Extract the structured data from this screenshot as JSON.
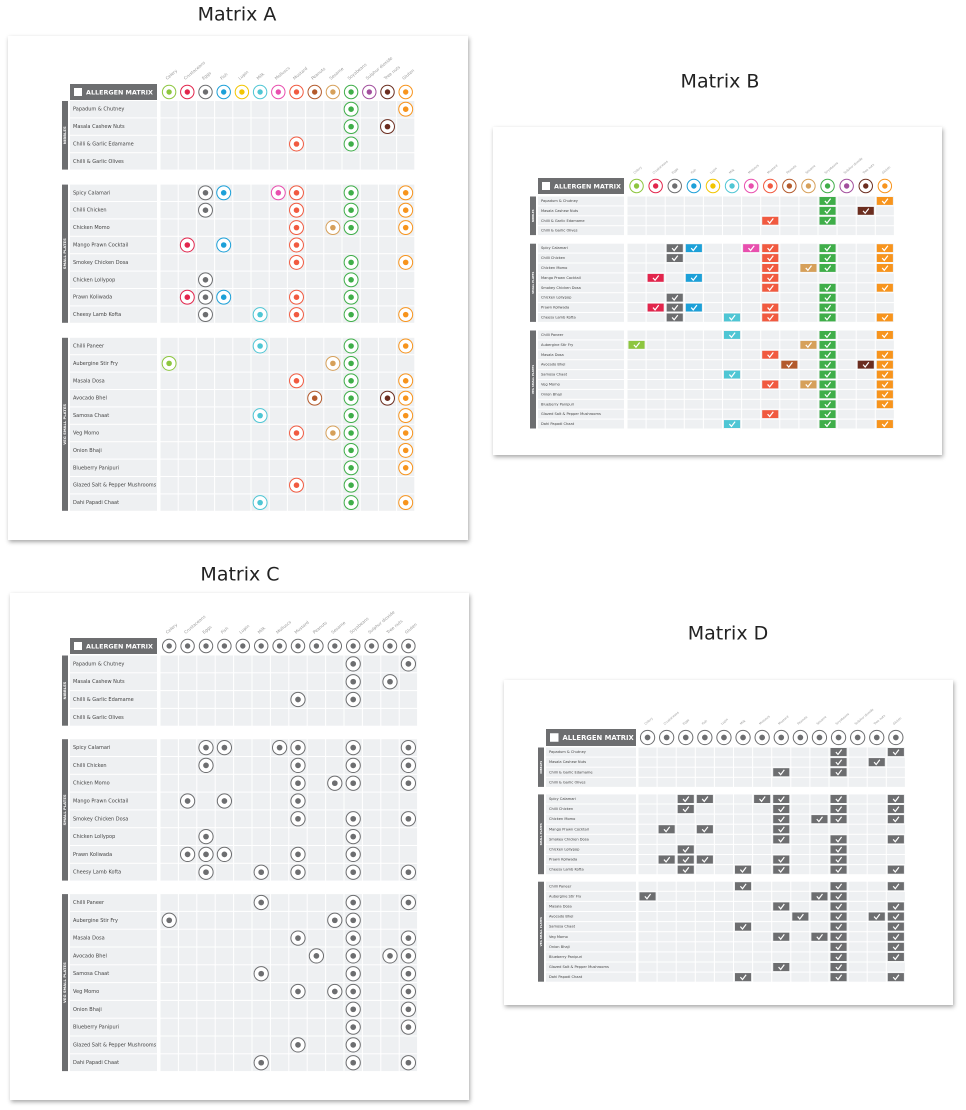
{
  "header_label": "ALLERGEN MATRIX",
  "matrices": [
    {
      "title": "Matrix A",
      "marker": "icon",
      "colored": true
    },
    {
      "title": "Matrix B",
      "marker": "check",
      "colored": true
    },
    {
      "title": "Matrix C",
      "marker": "icon",
      "colored": false
    },
    {
      "title": "Matrix D",
      "marker": "check",
      "colored": false
    }
  ],
  "menu": {
    "allergens": [
      "Celery",
      "Crustaceans",
      "Eggs",
      "Fish",
      "Lupin",
      "Milk",
      "Molluscs",
      "Mustard",
      "Peanuts",
      "Sesame",
      "Soyabeans",
      "Sulphur dioxide",
      "Tree nuts",
      "Gluten"
    ],
    "colors": [
      "#8dc63f",
      "#e2254c",
      "#6d6e70",
      "#1ca0d8",
      "#f2c500",
      "#4fc6d4",
      "#e84fae",
      "#f15a40",
      "#b35a2c",
      "#d6a05a",
      "#3fae49",
      "#a24f9d",
      "#6b2d1f",
      "#f7941d"
    ],
    "gray": "#6d6e70",
    "sections": [
      {
        "name": "NIBBLES",
        "dishes": [
          {
            "name": "Papadum & Chutney",
            "contains": [
              0,
              0,
              0,
              0,
              0,
              0,
              0,
              0,
              0,
              0,
              1,
              0,
              0,
              1
            ]
          },
          {
            "name": "Masala Cashew Nuts",
            "contains": [
              0,
              0,
              0,
              0,
              0,
              0,
              0,
              0,
              0,
              0,
              1,
              0,
              1,
              0
            ]
          },
          {
            "name": "Chilli & Garlic Edamame",
            "contains": [
              0,
              0,
              0,
              0,
              0,
              0,
              0,
              1,
              0,
              0,
              1,
              0,
              0,
              0
            ]
          },
          {
            "name": "Chilli & Garlic Olives",
            "contains": [
              0,
              0,
              0,
              0,
              0,
              0,
              0,
              0,
              0,
              0,
              0,
              0,
              0,
              0
            ]
          }
        ]
      },
      {
        "name": "SMALL PLATES",
        "dishes": [
          {
            "name": "Spicy Calamari",
            "contains": [
              0,
              0,
              1,
              1,
              0,
              0,
              1,
              1,
              0,
              0,
              1,
              0,
              0,
              1
            ]
          },
          {
            "name": "Chilli Chicken",
            "contains": [
              0,
              0,
              1,
              0,
              0,
              0,
              0,
              1,
              0,
              0,
              1,
              0,
              0,
              1
            ]
          },
          {
            "name": "Chicken Momo",
            "contains": [
              0,
              0,
              0,
              0,
              0,
              0,
              0,
              1,
              0,
              1,
              1,
              0,
              0,
              1
            ]
          },
          {
            "name": "Mango Prawn Cocktail",
            "contains": [
              0,
              1,
              0,
              1,
              0,
              0,
              0,
              1,
              0,
              0,
              0,
              0,
              0,
              0
            ]
          },
          {
            "name": "Smokey Chicken Dosa",
            "contains": [
              0,
              0,
              0,
              0,
              0,
              0,
              0,
              1,
              0,
              0,
              1,
              0,
              0,
              1
            ]
          },
          {
            "name": "Chicken Lollypop",
            "contains": [
              0,
              0,
              1,
              0,
              0,
              0,
              0,
              0,
              0,
              0,
              1,
              0,
              0,
              0
            ]
          },
          {
            "name": "Prawn Koliwada",
            "contains": [
              0,
              1,
              1,
              1,
              0,
              0,
              0,
              1,
              0,
              0,
              1,
              0,
              0,
              0
            ]
          },
          {
            "name": "Cheesy Lamb Kofta",
            "contains": [
              0,
              0,
              1,
              0,
              0,
              1,
              0,
              1,
              0,
              0,
              1,
              0,
              0,
              1
            ]
          }
        ]
      },
      {
        "name": "VEG SMALL PLATES",
        "dishes": [
          {
            "name": "Chilli Paneer",
            "contains": [
              0,
              0,
              0,
              0,
              0,
              1,
              0,
              0,
              0,
              0,
              1,
              0,
              0,
              1
            ]
          },
          {
            "name": "Aubergine Stir Fry",
            "contains": [
              1,
              0,
              0,
              0,
              0,
              0,
              0,
              0,
              0,
              1,
              1,
              0,
              0,
              0
            ]
          },
          {
            "name": "Masala Dosa",
            "contains": [
              0,
              0,
              0,
              0,
              0,
              0,
              0,
              1,
              0,
              0,
              1,
              0,
              0,
              1
            ]
          },
          {
            "name": "Avocado Bhel",
            "contains": [
              0,
              0,
              0,
              0,
              0,
              0,
              0,
              0,
              1,
              0,
              1,
              0,
              1,
              1
            ]
          },
          {
            "name": "Samosa Chaat",
            "contains": [
              0,
              0,
              0,
              0,
              0,
              1,
              0,
              0,
              0,
              0,
              1,
              0,
              0,
              1
            ]
          },
          {
            "name": "Veg Momo",
            "contains": [
              0,
              0,
              0,
              0,
              0,
              0,
              0,
              1,
              0,
              1,
              1,
              0,
              0,
              1
            ]
          },
          {
            "name": "Onion Bhaji",
            "contains": [
              0,
              0,
              0,
              0,
              0,
              0,
              0,
              0,
              0,
              0,
              1,
              0,
              0,
              1
            ]
          },
          {
            "name": "Blueberry Panipuri",
            "contains": [
              0,
              0,
              0,
              0,
              0,
              0,
              0,
              0,
              0,
              0,
              1,
              0,
              0,
              1
            ]
          },
          {
            "name": "Glazed Salt & Pepper Mushrooms",
            "contains": [
              0,
              0,
              0,
              0,
              0,
              0,
              0,
              1,
              0,
              0,
              1,
              0,
              0,
              0
            ]
          },
          {
            "name": "Dahi Papadi Chaat",
            "contains": [
              0,
              0,
              0,
              0,
              0,
              1,
              0,
              0,
              0,
              0,
              1,
              0,
              0,
              1
            ]
          }
        ]
      }
    ]
  }
}
